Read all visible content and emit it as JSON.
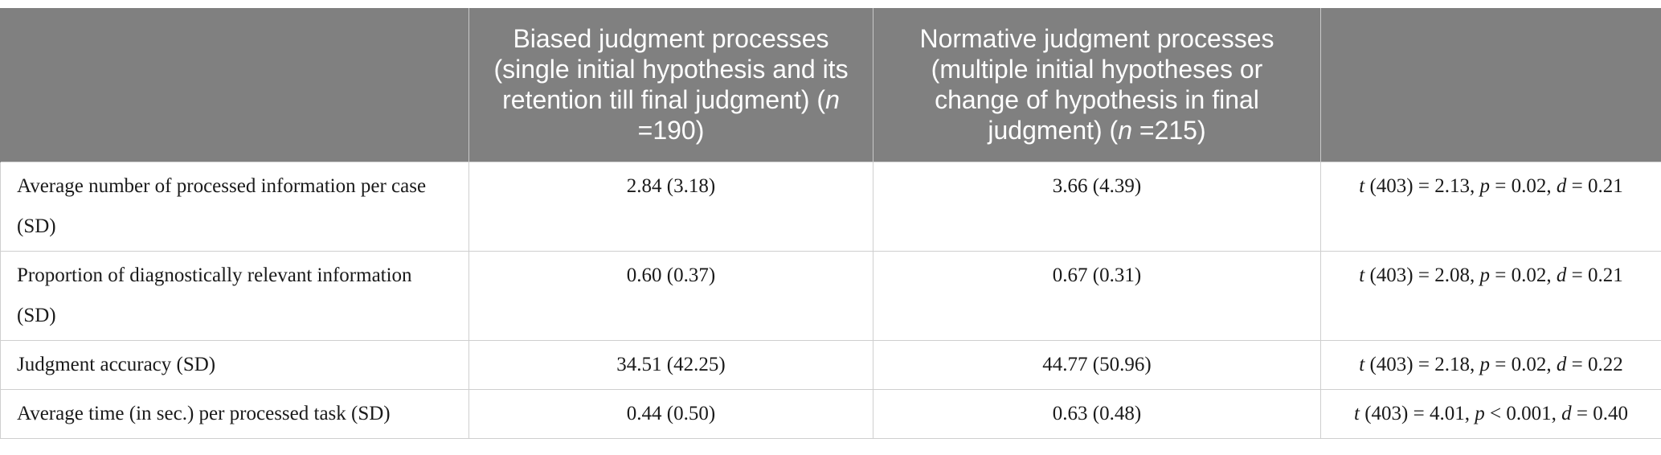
{
  "table": {
    "header": {
      "col0": "",
      "col1_text": "Biased judgment processes (single initial hypothesis and its retention till final judgment) (",
      "col1_n_symbol": "n",
      "col1_n_value": " =190)",
      "col2_text": "Normative judgment processes (multiple initial hypotheses or change of hypothesis in final judgment) (",
      "col2_n_symbol": "n",
      "col2_n_value": " =215)",
      "col3": ""
    },
    "rows": [
      {
        "label": "Average number of processed information per case (SD)",
        "biased": "2.84 (3.18)",
        "normative": "3.66 (4.39)",
        "stat": {
          "t_symbol": "t",
          "t_value": " (403) = 2.13, ",
          "p_symbol": "p",
          "p_value": " = 0.02, ",
          "d_symbol": "d",
          "d_value": " = 0.21"
        }
      },
      {
        "label": "Proportion of diagnostically relevant information (SD)",
        "biased": "0.60 (0.37)",
        "normative": "0.67 (0.31)",
        "stat": {
          "t_symbol": "t",
          "t_value": " (403) = 2.08, ",
          "p_symbol": "p",
          "p_value": " = 0.02, ",
          "d_symbol": "d",
          "d_value": " = 0.21"
        }
      },
      {
        "label": "Judgment accuracy (SD)",
        "biased": "34.51 (42.25)",
        "normative": "44.77 (50.96)",
        "stat": {
          "t_symbol": "t",
          "t_value": " (403) = 2.18, ",
          "p_symbol": "p",
          "p_value": " = 0.02, ",
          "d_symbol": "d",
          "d_value": " = 0.22"
        }
      },
      {
        "label": "Average time (in sec.) per processed task (SD)",
        "biased": "0.44 (0.50)",
        "normative": "0.63 (0.48)",
        "stat": {
          "t_symbol": "t",
          "t_value": " (403) = 4.01, ",
          "p_symbol": "p",
          "p_value": " < 0.001, ",
          "d_symbol": "d",
          "d_value": " = 0.40"
        }
      }
    ]
  },
  "colors": {
    "header_bg": "#808080",
    "header_text": "#ffffff",
    "grid": "#cfcfcf"
  }
}
